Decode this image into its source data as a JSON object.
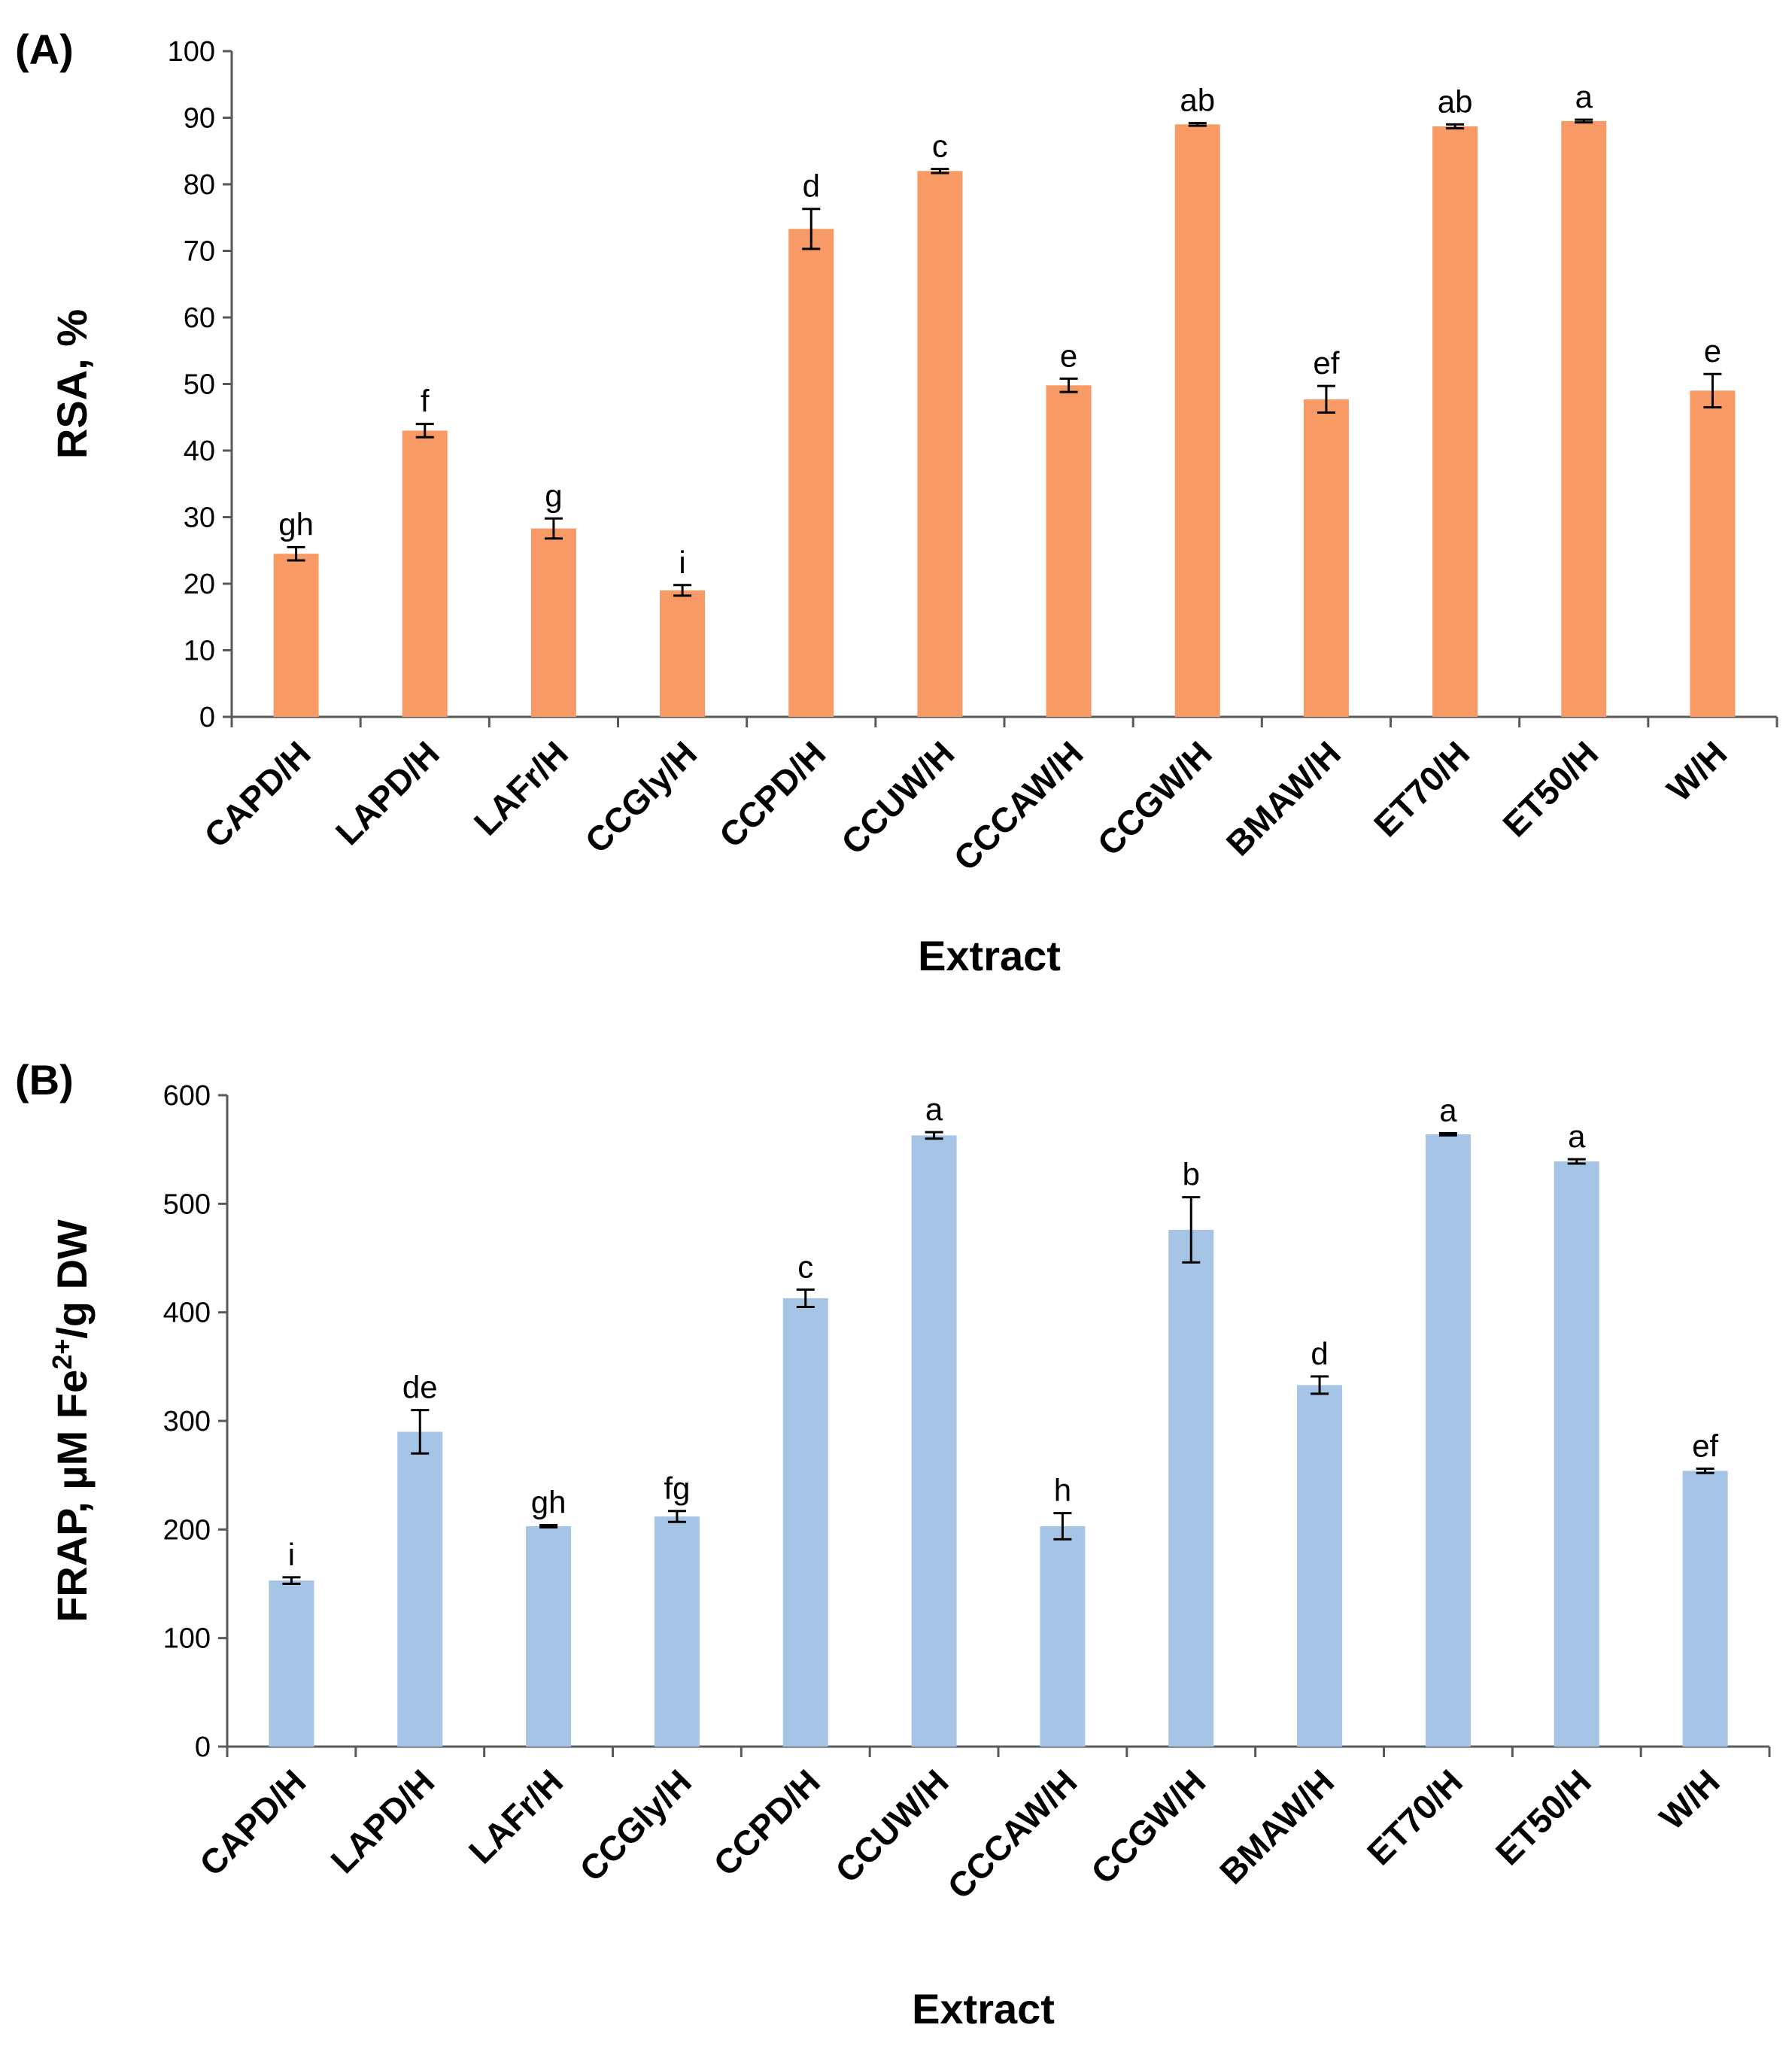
{
  "chart_data": [
    {
      "type": "bar",
      "panel_label": "(A)",
      "categories": [
        "CAPD/H",
        "LAPD/H",
        "LAFr/H",
        "CCGly/H",
        "CCPD/H",
        "CCUW/H",
        "CCCAW/H",
        "CCGW/H",
        "BMAW/H",
        "ET70/H",
        "ET50/H",
        "W/H"
      ],
      "series": [
        {
          "values": [
            24.5,
            43.0,
            28.3,
            19.0,
            73.3,
            82.0,
            49.8,
            89.0,
            47.7,
            88.7,
            89.5,
            49.0
          ],
          "errors": [
            1.0,
            1.0,
            1.5,
            0.8,
            3.0,
            0.3,
            1.0,
            0.2,
            2.0,
            0.3,
            0.2,
            2.5
          ],
          "labels": [
            "gh",
            "f",
            "g",
            "i",
            "d",
            "c",
            "e",
            "ab",
            "ef",
            "ab",
            "a",
            "e"
          ],
          "color": "#F79A65"
        }
      ],
      "xlabel": "Extract",
      "ylabel": "RSA, %",
      "ylim": [
        0,
        100
      ],
      "yticks": [
        0,
        10,
        20,
        30,
        40,
        50,
        60,
        70,
        80,
        90,
        100
      ],
      "grid": false
    },
    {
      "type": "bar",
      "panel_label": "(B)",
      "categories": [
        "CAPD/H",
        "LAPD/H",
        "LAFr/H",
        "CCGly/H",
        "CCPD/H",
        "CCUW/H",
        "CCCAW/H",
        "CCGW/H",
        "BMAW/H",
        "ET70/H",
        "ET50/H",
        "W/H"
      ],
      "series": [
        {
          "values": [
            153,
            290,
            203,
            212,
            413,
            563,
            203,
            476,
            333,
            564,
            539,
            254
          ],
          "errors": [
            3,
            20,
            1,
            5,
            8,
            3,
            12,
            30,
            8,
            1,
            2,
            2
          ],
          "labels": [
            "i",
            "de",
            "gh",
            "fg",
            "c",
            "a",
            "h",
            "b",
            "d",
            "a",
            "a",
            "ef"
          ],
          "color": "#A6C4E6"
        }
      ],
      "xlabel": "Extract",
      "ylabel_main": "FRAP, µM Fe",
      "ylabel_sup": "2+",
      "ylabel_tail": "/g DW",
      "ylim": [
        0,
        600
      ],
      "yticks": [
        0,
        100,
        200,
        300,
        400,
        500,
        600
      ],
      "grid": false
    }
  ]
}
